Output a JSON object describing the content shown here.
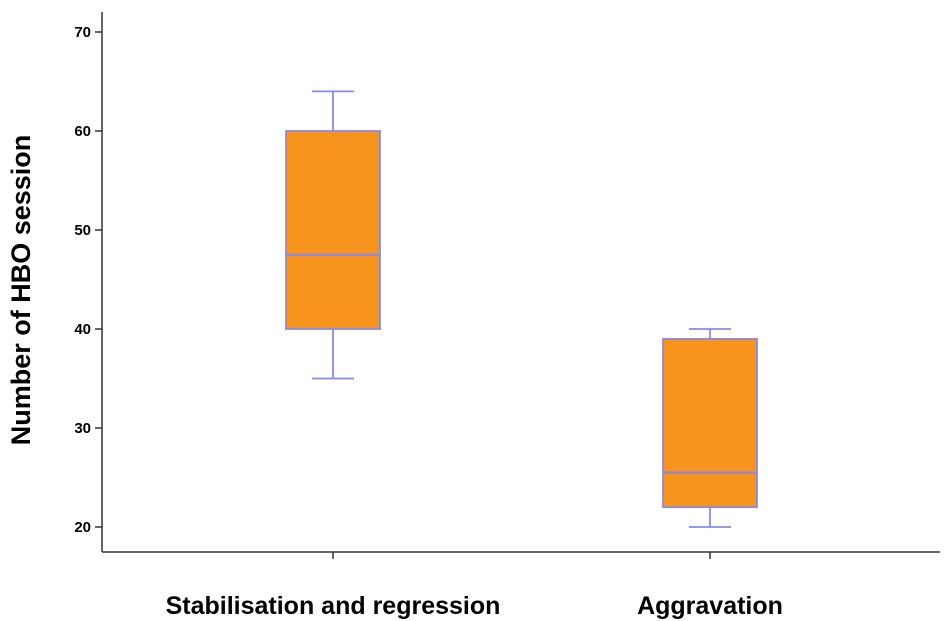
{
  "chart_data": {
    "type": "box",
    "ylabel": "Number of HBO session",
    "xlabel": "",
    "ylim": [
      18,
      72
    ],
    "yticks": [
      20,
      30,
      40,
      50,
      60,
      70
    ],
    "grid": false,
    "categories": [
      "Stabilisation and regression",
      "Aggravation"
    ],
    "boxes": [
      {
        "category": "Stabilisation and regression",
        "min": 35,
        "q1": 40,
        "median": 47.5,
        "q3": 60,
        "max": 64
      },
      {
        "category": "Aggravation",
        "min": 20,
        "q1": 22,
        "median": 25.5,
        "q3": 39,
        "max": 40
      }
    ],
    "colors": {
      "box_fill": "#f7941d",
      "box_edge": "#8a8ae6",
      "axis": "#333333"
    }
  }
}
